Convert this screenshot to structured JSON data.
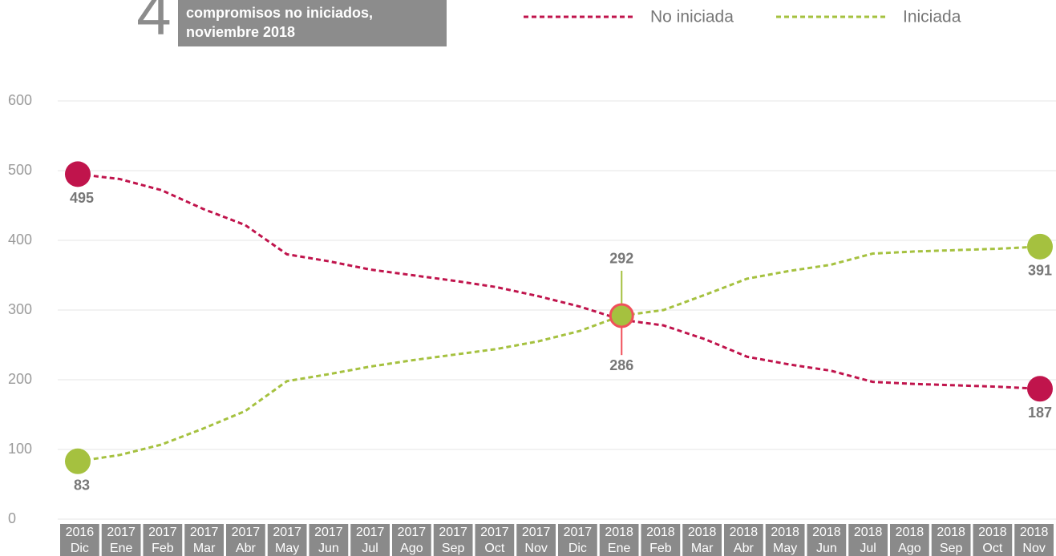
{
  "chart_data": {
    "type": "line",
    "title_number": "4",
    "title": [
      "compromisos no iniciados,",
      "noviembre 2018"
    ],
    "categories": [
      {
        "year": "2016",
        "month": "Dic"
      },
      {
        "year": "2017",
        "month": "Ene"
      },
      {
        "year": "2017",
        "month": "Feb"
      },
      {
        "year": "2017",
        "month": "Mar"
      },
      {
        "year": "2017",
        "month": "Abr"
      },
      {
        "year": "2017",
        "month": "May"
      },
      {
        "year": "2017",
        "month": "Jun"
      },
      {
        "year": "2017",
        "month": "Jul"
      },
      {
        "year": "2017",
        "month": "Ago"
      },
      {
        "year": "2017",
        "month": "Sep"
      },
      {
        "year": "2017",
        "month": "Oct"
      },
      {
        "year": "2017",
        "month": "Nov"
      },
      {
        "year": "2017",
        "month": "Dic"
      },
      {
        "year": "2018",
        "month": "Ene"
      },
      {
        "year": "2018",
        "month": "Feb"
      },
      {
        "year": "2018",
        "month": "Mar"
      },
      {
        "year": "2018",
        "month": "Abr"
      },
      {
        "year": "2018",
        "month": "May"
      },
      {
        "year": "2018",
        "month": "Jun"
      },
      {
        "year": "2018",
        "month": "Jul"
      },
      {
        "year": "2018",
        "month": "Ago"
      },
      {
        "year": "2018",
        "month": "Sep"
      },
      {
        "year": "2018",
        "month": "Oct"
      },
      {
        "year": "2018",
        "month": "Nov"
      }
    ],
    "series": [
      {
        "name": "No iniciada",
        "color": "#c0144c",
        "values": [
          495,
          488,
          472,
          445,
          422,
          380,
          370,
          358,
          350,
          342,
          333,
          320,
          305,
          286,
          278,
          258,
          233,
          222,
          213,
          197,
          194,
          192,
          190,
          187
        ],
        "value_labels": [
          "495",
          null,
          null,
          null,
          null,
          null,
          null,
          null,
          null,
          null,
          null,
          null,
          null,
          "286",
          null,
          null,
          null,
          null,
          null,
          null,
          null,
          null,
          null,
          "187"
        ]
      },
      {
        "name": "Iniciada",
        "color": "#a5c13f",
        "values": [
          83,
          92,
          107,
          130,
          155,
          198,
          208,
          219,
          228,
          236,
          244,
          255,
          270,
          292,
          300,
          322,
          345,
          356,
          365,
          381,
          384,
          386,
          388,
          391
        ],
        "value_labels": [
          "83",
          null,
          null,
          null,
          null,
          null,
          null,
          null,
          null,
          null,
          null,
          null,
          null,
          "292",
          null,
          null,
          null,
          null,
          null,
          null,
          null,
          null,
          null,
          "391"
        ]
      }
    ],
    "ylim": [
      0,
      600
    ],
    "yticks": [
      0,
      100,
      200,
      300,
      400,
      500,
      600
    ],
    "grid": true
  }
}
